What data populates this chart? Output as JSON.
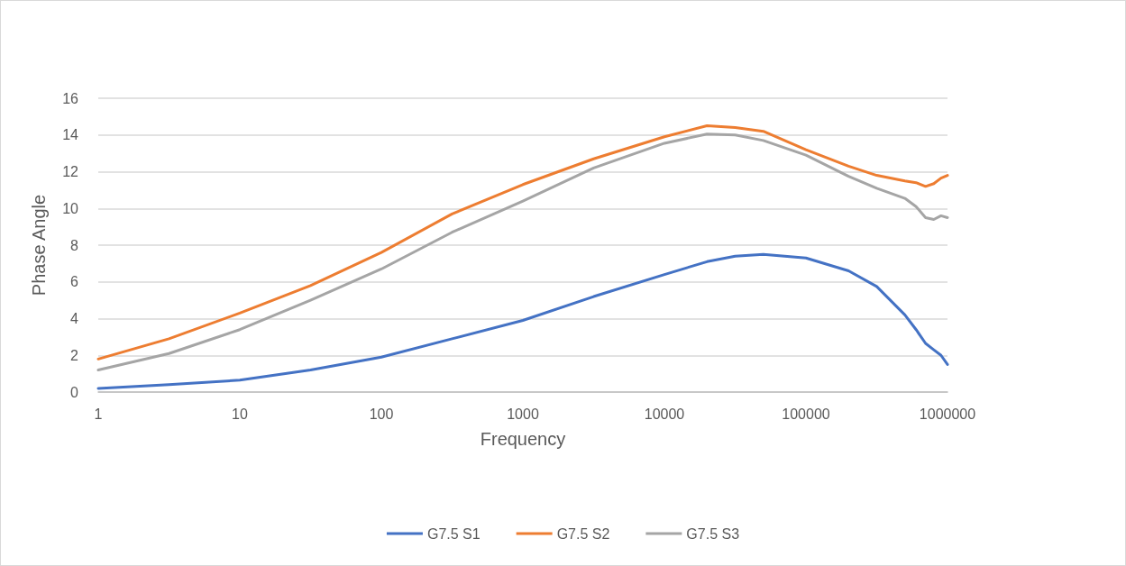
{
  "chart_data": {
    "type": "line",
    "xlabel": "Frequency",
    "ylabel": "Phase Angle",
    "log": "x",
    "grid": "y",
    "legend": "bottom",
    "marker": "none",
    "line_style": "solid",
    "xlim": [
      1,
      1000000
    ],
    "xticks": [
      1,
      10,
      100,
      1000,
      10000,
      100000,
      1000000
    ],
    "ylim": [
      0,
      16
    ],
    "yticks": [
      0,
      2,
      4,
      6,
      8,
      10,
      12,
      14,
      16
    ],
    "x": [
      1,
      3.16,
      10,
      31.6,
      100,
      316,
      1000,
      3162,
      10000,
      20000,
      31623,
      50000,
      100000,
      200000,
      316000,
      500000,
      600000,
      700000,
      800000,
      900000,
      1000000
    ],
    "series": [
      {
        "name": "G7.5 S1",
        "color": "#4472c4",
        "values": [
          0.2,
          0.4,
          0.65,
          1.2,
          1.9,
          2.9,
          3.9,
          5.2,
          6.4,
          7.1,
          7.4,
          7.5,
          7.3,
          6.6,
          5.75,
          4.2,
          3.4,
          2.65,
          2.3,
          2.0,
          1.5
        ]
      },
      {
        "name": "G7.5 S2",
        "color": "#ed7d31",
        "values": [
          1.8,
          2.9,
          4.3,
          5.8,
          7.6,
          9.7,
          11.3,
          12.7,
          13.9,
          14.5,
          14.4,
          14.2,
          13.2,
          12.3,
          11.8,
          11.5,
          11.4,
          11.2,
          11.35,
          11.65,
          11.8
        ]
      },
      {
        "name": "G7.5 S3",
        "color": "#a5a5a5",
        "values": [
          1.2,
          2.1,
          3.4,
          5.0,
          6.7,
          8.7,
          10.4,
          12.2,
          13.55,
          14.05,
          14.0,
          13.7,
          12.9,
          11.75,
          11.1,
          10.55,
          10.1,
          9.5,
          9.4,
          9.6,
          9.5
        ]
      }
    ]
  }
}
